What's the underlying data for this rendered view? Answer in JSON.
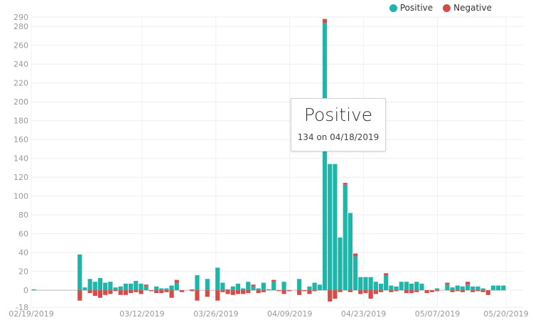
{
  "legend": {
    "items": [
      {
        "label": "Positive",
        "color": "#1fb5a8"
      },
      {
        "label": "Negative",
        "color": "#d84a4a"
      }
    ]
  },
  "tooltip": {
    "title": "Positive",
    "text": "134 on 04/18/2019"
  },
  "chart_data": {
    "type": "bar",
    "stacked": true,
    "ylim": [
      -18,
      290
    ],
    "yticks": [
      -18,
      0,
      20,
      40,
      60,
      80,
      100,
      120,
      140,
      160,
      180,
      200,
      220,
      240,
      260,
      280,
      290
    ],
    "xticks": [
      "02/19/2019",
      "03/12/2019",
      "03/26/2019",
      "04/09/2019",
      "04/23/2019",
      "05/07/2019",
      "05/20/2019"
    ],
    "xlim": [
      "02/19/2019",
      "05/20/2019"
    ],
    "grid": true,
    "legend_position": "top-right",
    "series": [
      {
        "name": "Positive",
        "color": "#1fb5a8",
        "values": [
          1,
          0,
          0,
          0,
          0,
          0,
          0,
          0,
          0,
          38,
          3,
          12,
          9,
          13,
          8,
          9,
          3,
          4,
          7,
          7,
          10,
          7,
          4,
          0,
          4,
          2,
          2,
          5,
          8,
          0,
          0,
          1,
          16,
          0,
          12,
          0,
          24,
          8,
          1,
          4,
          7,
          2,
          9,
          4,
          2,
          8,
          1,
          9,
          0,
          9,
          0,
          0,
          12,
          0,
          4,
          8,
          6,
          284,
          134,
          134,
          56,
          112,
          82,
          36,
          14,
          14,
          14,
          9,
          7,
          16,
          5,
          4,
          9,
          9,
          7,
          9,
          7,
          0,
          0,
          2,
          0,
          6,
          3,
          5,
          4,
          6,
          4,
          4,
          2,
          0,
          5,
          5,
          5
        ]
      },
      {
        "name": "Negative",
        "color": "#d84a4a",
        "values": [
          0,
          0,
          0,
          0,
          0,
          0,
          0,
          0,
          0,
          -11,
          0,
          -3,
          -6,
          -8,
          -5,
          -4,
          -1,
          -5,
          -5,
          -3,
          -2,
          -4,
          2,
          -1,
          -3,
          -3,
          -2,
          -8,
          3,
          -2,
          0,
          -1,
          -11,
          0,
          -7,
          0,
          -11,
          -2,
          -4,
          -5,
          -4,
          -4,
          -3,
          2,
          -3,
          -2,
          0,
          2,
          -1,
          -4,
          -1,
          0,
          -5,
          -1,
          -4,
          -1,
          0,
          4,
          -12,
          -9,
          -2,
          2,
          -2,
          3,
          -4,
          -3,
          -9,
          -4,
          -2,
          2,
          -2,
          -1,
          0,
          -3,
          -3,
          -2,
          0,
          -3,
          -2,
          -1,
          0,
          2,
          -2,
          -1,
          -2,
          3,
          -2,
          -1,
          -2,
          -5,
          0,
          0,
          0
        ]
      }
    ]
  }
}
